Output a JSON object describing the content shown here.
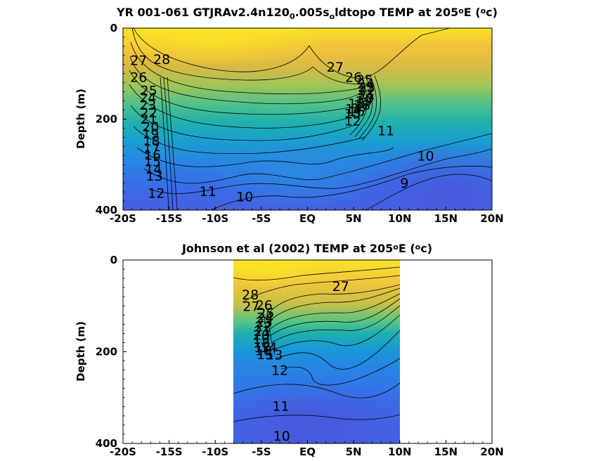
{
  "chart_data": [
    {
      "type": "heatmap",
      "subtype": "filled-contour",
      "title": "YR 001-061 GTJRAv2.4n120",
      "title_parts": [
        {
          "text": "YR 001-061 GTJRAv2.4n120"
        },
        {
          "text": "0",
          "script": "sub"
        },
        {
          "text": ".005s"
        },
        {
          "text": "o",
          "script": "sub"
        },
        {
          "text": "ldtopo TEMP at 205"
        },
        {
          "text": "o",
          "script": "sup"
        },
        {
          "text": "E ("
        },
        {
          "text": "o",
          "script": "sup"
        },
        {
          "text": "c)"
        }
      ],
      "xlabel": "",
      "ylabel": "Depth (m)",
      "x_ticks": [
        "-20S",
        "-15S",
        "-10S",
        "-5S",
        "EQ",
        "5N",
        "10N",
        "15N",
        "20N"
      ],
      "y_ticks": [
        "0",
        "200",
        "400"
      ],
      "xlim": [
        -20,
        20
      ],
      "ylim": [
        0,
        400
      ],
      "y_reversed": true,
      "data_extent": [
        -20,
        20
      ],
      "colormap": "parula",
      "color_range": [
        8,
        29
      ],
      "contour_labels": [
        {
          "text": "28",
          "x": -15.8,
          "y": 68
        },
        {
          "text": "27",
          "x": -18.3,
          "y": 70
        },
        {
          "text": "26",
          "x": -18.3,
          "y": 107
        },
        {
          "text": "25",
          "x": -17.2,
          "y": 137
        },
        {
          "text": "24",
          "x": -17.3,
          "y": 152
        },
        {
          "text": "23",
          "x": -17.3,
          "y": 168
        },
        {
          "text": "22",
          "x": -17.2,
          "y": 185
        },
        {
          "text": "21",
          "x": -17.2,
          "y": 199
        },
        {
          "text": "20",
          "x": -17.0,
          "y": 216
        },
        {
          "text": "19",
          "x": -17.0,
          "y": 232
        },
        {
          "text": "18",
          "x": -16.9,
          "y": 247
        },
        {
          "text": "17",
          "x": -16.9,
          "y": 263
        },
        {
          "text": "16",
          "x": -16.8,
          "y": 278
        },
        {
          "text": "15",
          "x": -16.8,
          "y": 293
        },
        {
          "text": "14",
          "x": -16.7,
          "y": 309
        },
        {
          "text": "13",
          "x": -16.6,
          "y": 324
        },
        {
          "text": "12",
          "x": -16.4,
          "y": 362
        },
        {
          "text": "11",
          "x": -10.8,
          "y": 358
        },
        {
          "text": "10",
          "x": -6.8,
          "y": 370
        },
        {
          "text": "27",
          "x": 3.0,
          "y": 85
        },
        {
          "text": "26",
          "x": 5.0,
          "y": 107
        },
        {
          "text": "25",
          "x": 6.2,
          "y": 113
        },
        {
          "text": "24",
          "x": 6.3,
          "y": 122
        },
        {
          "text": "23",
          "x": 6.4,
          "y": 130
        },
        {
          "text": "22",
          "x": 6.4,
          "y": 137
        },
        {
          "text": "21",
          "x": 6.4,
          "y": 145
        },
        {
          "text": "20",
          "x": 6.3,
          "y": 153
        },
        {
          "text": "19",
          "x": 6.1,
          "y": 160
        },
        {
          "text": "18",
          "x": 5.9,
          "y": 168
        },
        {
          "text": "17",
          "x": 5.7,
          "y": 175
        },
        {
          "text": "16",
          "x": 5.3,
          "y": 182
        },
        {
          "text": "15",
          "x": 4.9,
          "y": 188
        },
        {
          "text": "14",
          "x": 5.0,
          "y": 177
        },
        {
          "text": "13",
          "x": 5.3,
          "y": 165
        },
        {
          "text": "12",
          "x": 4.9,
          "y": 203
        },
        {
          "text": "11",
          "x": 8.5,
          "y": 225
        },
        {
          "text": "10",
          "x": 12.8,
          "y": 280
        },
        {
          "text": "9",
          "x": 10.5,
          "y": 340
        }
      ]
    },
    {
      "type": "heatmap",
      "subtype": "filled-contour",
      "title": "Johnson et al (2002) TEMP at 205",
      "title_parts": [
        {
          "text": "Johnson et al (2002) TEMP at 205"
        },
        {
          "text": "o",
          "script": "sup"
        },
        {
          "text": "E ("
        },
        {
          "text": "o",
          "script": "sup"
        },
        {
          "text": "c)"
        }
      ],
      "xlabel": "",
      "ylabel": "Depth (m)",
      "x_ticks": [
        "-20S",
        "-15S",
        "-10S",
        "-5S",
        "EQ",
        "5N",
        "10N",
        "15N",
        "20N"
      ],
      "y_ticks": [
        "0",
        "200",
        "400"
      ],
      "xlim": [
        -20,
        20
      ],
      "ylim": [
        0,
        400
      ],
      "y_reversed": true,
      "data_extent": [
        -8,
        10
      ],
      "colormap": "parula",
      "color_range": [
        8,
        29
      ],
      "contour_labels": [
        {
          "text": "28",
          "x": -6.2,
          "y": 75
        },
        {
          "text": "27",
          "x": -6.1,
          "y": 100
        },
        {
          "text": "26",
          "x": -4.7,
          "y": 98
        },
        {
          "text": "27",
          "x": 3.6,
          "y": 57
        },
        {
          "text": "25",
          "x": -4.5,
          "y": 115
        },
        {
          "text": "24",
          "x": -4.6,
          "y": 125
        },
        {
          "text": "23",
          "x": -4.7,
          "y": 135
        },
        {
          "text": "22",
          "x": -4.8,
          "y": 145
        },
        {
          "text": "21",
          "x": -4.9,
          "y": 155
        },
        {
          "text": "20",
          "x": -5.0,
          "y": 163
        },
        {
          "text": "19",
          "x": -5.0,
          "y": 172
        },
        {
          "text": "18",
          "x": -5.0,
          "y": 180
        },
        {
          "text": "17",
          "x": -4.9,
          "y": 190
        },
        {
          "text": "16",
          "x": -4.8,
          "y": 197
        },
        {
          "text": "15",
          "x": -4.6,
          "y": 205
        },
        {
          "text": "14",
          "x": -4.2,
          "y": 190
        },
        {
          "text": "13",
          "x": -3.6,
          "y": 206
        },
        {
          "text": "12",
          "x": -3.0,
          "y": 240
        },
        {
          "text": "11",
          "x": -2.9,
          "y": 318
        },
        {
          "text": "10",
          "x": -2.8,
          "y": 383
        }
      ]
    }
  ]
}
